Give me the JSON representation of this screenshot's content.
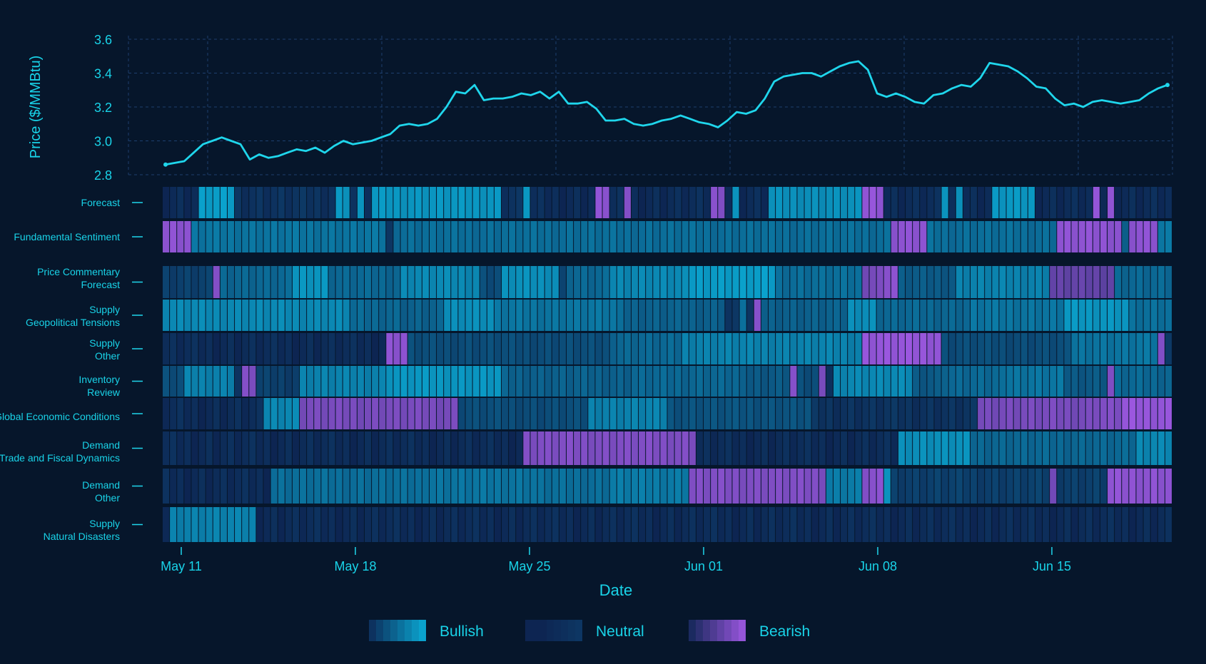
{
  "chart_data": {
    "type": "line+heatmap",
    "title": "",
    "xlabel": "Date",
    "ylabel": "Price ($/MMBtu)",
    "ylim": [
      2.8,
      3.6
    ],
    "yticks": [
      "2.8",
      "3.0",
      "3.2",
      "3.4",
      "3.6"
    ],
    "xtick_labels": [
      "May 11",
      "May 18",
      "May 25",
      "Jun 01",
      "Jun 08",
      "Jun 15"
    ],
    "x_range_days": [
      -0.75,
      41.75
    ],
    "grid": true,
    "colors": {
      "line": "#1fd6ec",
      "bullish": "#0aa9d3",
      "neutral": "#0d2552",
      "bearish": "#9b57df",
      "background": "#06162b"
    },
    "price_series": {
      "name": "",
      "points": [
        [
          0,
          2.86
        ],
        [
          0.5,
          2.87
        ],
        [
          1.0,
          2.88
        ],
        [
          1.5,
          2.93
        ],
        [
          2.0,
          2.98
        ],
        [
          2.5,
          3.0
        ],
        [
          3.0,
          3.02
        ],
        [
          3.5,
          3.0
        ],
        [
          4.0,
          2.98
        ],
        [
          4.5,
          2.89
        ],
        [
          5.0,
          2.92
        ],
        [
          5.5,
          2.9
        ],
        [
          6.0,
          2.91
        ],
        [
          6.5,
          2.93
        ],
        [
          7.0,
          2.95
        ],
        [
          7.5,
          2.94
        ],
        [
          8.0,
          2.96
        ],
        [
          8.5,
          2.93
        ],
        [
          9.0,
          2.97
        ],
        [
          9.5,
          3.0
        ],
        [
          10.0,
          2.98
        ],
        [
          10.5,
          2.99
        ],
        [
          11.0,
          3.0
        ],
        [
          11.5,
          3.02
        ],
        [
          12.0,
          3.04
        ],
        [
          12.5,
          3.09
        ],
        [
          13.0,
          3.1
        ],
        [
          13.5,
          3.09
        ],
        [
          14.0,
          3.1
        ],
        [
          14.5,
          3.13
        ],
        [
          15.0,
          3.2
        ],
        [
          15.5,
          3.29
        ],
        [
          16.0,
          3.28
        ],
        [
          16.5,
          3.33
        ],
        [
          17.0,
          3.24
        ],
        [
          17.5,
          3.25
        ],
        [
          18.0,
          3.25
        ],
        [
          18.5,
          3.26
        ],
        [
          19.0,
          3.28
        ],
        [
          19.5,
          3.27
        ],
        [
          20.0,
          3.29
        ],
        [
          20.5,
          3.25
        ],
        [
          21.0,
          3.29
        ],
        [
          21.5,
          3.22
        ],
        [
          22.0,
          3.22
        ],
        [
          22.5,
          3.23
        ],
        [
          23.0,
          3.19
        ],
        [
          23.5,
          3.12
        ],
        [
          24.0,
          3.12
        ],
        [
          24.5,
          3.13
        ],
        [
          25.0,
          3.1
        ],
        [
          25.5,
          3.09
        ],
        [
          26.0,
          3.1
        ],
        [
          26.5,
          3.12
        ],
        [
          27.0,
          3.13
        ],
        [
          27.5,
          3.15
        ],
        [
          28.0,
          3.13
        ],
        [
          28.5,
          3.11
        ],
        [
          29.0,
          3.1
        ],
        [
          29.5,
          3.08
        ],
        [
          30.0,
          3.12
        ],
        [
          30.5,
          3.17
        ],
        [
          31.0,
          3.16
        ],
        [
          31.5,
          3.18
        ],
        [
          32.0,
          3.25
        ],
        [
          32.5,
          3.35
        ],
        [
          33.0,
          3.38
        ],
        [
          33.5,
          3.39
        ],
        [
          34.0,
          3.4
        ],
        [
          34.5,
          3.4
        ],
        [
          35.0,
          3.38
        ],
        [
          35.5,
          3.41
        ],
        [
          36.0,
          3.44
        ],
        [
          36.5,
          3.46
        ],
        [
          37.0,
          3.47
        ],
        [
          37.5,
          3.42
        ],
        [
          38.0,
          3.28
        ],
        [
          38.5,
          3.26
        ],
        [
          39.0,
          3.28
        ],
        [
          39.5,
          3.26
        ],
        [
          40.0,
          3.23
        ],
        [
          40.5,
          3.22
        ],
        [
          41.0,
          3.27
        ],
        [
          41.5,
          3.28
        ],
        [
          42.0,
          3.31
        ],
        [
          42.5,
          3.33
        ],
        [
          43.0,
          3.32
        ],
        [
          43.5,
          3.37
        ],
        [
          44.0,
          3.46
        ],
        [
          44.5,
          3.45
        ],
        [
          45.0,
          3.44
        ],
        [
          45.5,
          3.41
        ],
        [
          46.0,
          3.37
        ],
        [
          46.5,
          3.32
        ],
        [
          47.0,
          3.31
        ],
        [
          47.5,
          3.25
        ],
        [
          48.0,
          3.21
        ],
        [
          48.5,
          3.22
        ],
        [
          49.0,
          3.2
        ],
        [
          49.5,
          3.23
        ],
        [
          50.0,
          3.24
        ],
        [
          50.5,
          3.23
        ],
        [
          51.0,
          3.22
        ],
        [
          51.5,
          3.23
        ],
        [
          52.0,
          3.24
        ],
        [
          52.5,
          3.28
        ],
        [
          53.0,
          3.31
        ],
        [
          53.5,
          3.33
        ]
      ]
    },
    "heatmap": {
      "value_scale": "-1 = Bearish, 0 = Neutral, 1 = Bullish",
      "cells_per_row": 140,
      "rows": [
        {
          "label": [
            "Forecast"
          ],
          "segments": [
            [
              0,
              5,
              0.05
            ],
            [
              5,
              10,
              0.9
            ],
            [
              10,
              24,
              0.1
            ],
            [
              24,
              26,
              0.85
            ],
            [
              26,
              27,
              0.1
            ],
            [
              27,
              28,
              0.8
            ],
            [
              28,
              29,
              0.1
            ],
            [
              29,
              47,
              0.85
            ],
            [
              47,
              50,
              0.1
            ],
            [
              50,
              51,
              0.9
            ],
            [
              51,
              60,
              0.05
            ],
            [
              60,
              62,
              -0.9
            ],
            [
              62,
              64,
              0.05
            ],
            [
              64,
              65,
              -0.85
            ],
            [
              65,
              76,
              0.05
            ],
            [
              76,
              78,
              -0.85
            ],
            [
              78,
              79,
              0.05
            ],
            [
              79,
              80,
              0.8
            ],
            [
              80,
              84,
              0.05
            ],
            [
              84,
              97,
              0.8
            ],
            [
              97,
              100,
              -0.95
            ],
            [
              100,
              108,
              0.05
            ],
            [
              108,
              109,
              0.85
            ],
            [
              109,
              110,
              0.05
            ],
            [
              110,
              111,
              0.85
            ],
            [
              111,
              115,
              0.05
            ],
            [
              115,
              121,
              0.85
            ],
            [
              121,
              129,
              0.05
            ],
            [
              129,
              130,
              -0.9
            ],
            [
              130,
              131,
              0.05
            ],
            [
              131,
              132,
              -0.9
            ],
            [
              132,
              140,
              0.05
            ]
          ]
        },
        {
          "label": [
            "Fundamental Sentiment"
          ],
          "segments": [
            [
              0,
              4,
              -0.9
            ],
            [
              4,
              31,
              0.6
            ],
            [
              31,
              32,
              0.1
            ],
            [
              32,
              101,
              0.55
            ],
            [
              101,
              106,
              -0.9
            ],
            [
              106,
              124,
              0.55
            ],
            [
              124,
              133,
              -0.9
            ],
            [
              133,
              134,
              0.4
            ],
            [
              134,
              138,
              -0.9
            ],
            [
              138,
              140,
              0.6
            ]
          ]
        },
        {
          "label": [
            "Price Commentary",
            "Forecast"
          ],
          "segments": [
            [
              0,
              7,
              0.2
            ],
            [
              7,
              8,
              -0.85
            ],
            [
              8,
              18,
              0.5
            ],
            [
              18,
              23,
              0.85
            ],
            [
              23,
              33,
              0.5
            ],
            [
              33,
              44,
              0.75
            ],
            [
              44,
              47,
              0.3
            ],
            [
              47,
              55,
              0.8
            ],
            [
              55,
              56,
              0.2
            ],
            [
              56,
              62,
              0.5
            ],
            [
              62,
              73,
              0.75
            ],
            [
              73,
              85,
              0.9
            ],
            [
              85,
              97,
              0.55
            ],
            [
              97,
              100,
              -0.75
            ],
            [
              100,
              102,
              -0.9
            ],
            [
              102,
              110,
              0.4
            ],
            [
              110,
              123,
              0.7
            ],
            [
              123,
              132,
              -0.6
            ],
            [
              132,
              140,
              0.5
            ]
          ]
        },
        {
          "label": [
            "Supply",
            "Geopolitical Tensions"
          ],
          "segments": [
            [
              0,
              26,
              0.75
            ],
            [
              26,
              33,
              0.5
            ],
            [
              33,
              39,
              0.45
            ],
            [
              39,
              46,
              0.8
            ],
            [
              46,
              64,
              0.6
            ],
            [
              64,
              78,
              0.45
            ],
            [
              78,
              80,
              0.1
            ],
            [
              80,
              81,
              0.6
            ],
            [
              81,
              82,
              0.1
            ],
            [
              82,
              83,
              -0.8
            ],
            [
              83,
              95,
              0.45
            ],
            [
              95,
              99,
              0.8
            ],
            [
              99,
              112,
              0.5
            ],
            [
              112,
              125,
              0.6
            ],
            [
              125,
              134,
              0.85
            ],
            [
              134,
              140,
              0.55
            ]
          ]
        },
        {
          "label": [
            "Supply",
            "Other"
          ],
          "segments": [
            [
              0,
              31,
              0.05
            ],
            [
              31,
              34,
              -0.9
            ],
            [
              34,
              62,
              0.3
            ],
            [
              62,
              72,
              0.5
            ],
            [
              72,
              97,
              0.7
            ],
            [
              97,
              108,
              -0.95
            ],
            [
              108,
              126,
              0.3
            ],
            [
              126,
              138,
              0.6
            ],
            [
              138,
              139,
              -0.8
            ],
            [
              139,
              140,
              0.2
            ]
          ]
        },
        {
          "label": [
            "Inventory",
            "Review"
          ],
          "segments": [
            [
              0,
              3,
              0.3
            ],
            [
              3,
              10,
              0.7
            ],
            [
              10,
              11,
              0.1
            ],
            [
              11,
              13,
              -0.8
            ],
            [
              13,
              19,
              0.2
            ],
            [
              19,
              31,
              0.7
            ],
            [
              31,
              47,
              0.85
            ],
            [
              47,
              65,
              0.45
            ],
            [
              65,
              80,
              0.5
            ],
            [
              80,
              87,
              0.4
            ],
            [
              87,
              88,
              -0.85
            ],
            [
              88,
              91,
              0.3
            ],
            [
              91,
              92,
              -0.7
            ],
            [
              92,
              93,
              0.1
            ],
            [
              93,
              104,
              0.75
            ],
            [
              104,
              108,
              0.4
            ],
            [
              108,
              116,
              0.5
            ],
            [
              116,
              125,
              0.6
            ],
            [
              125,
              131,
              0.4
            ],
            [
              131,
              132,
              -0.8
            ],
            [
              132,
              140,
              0.5
            ]
          ]
        },
        {
          "label": [
            "Global Economic Conditions"
          ],
          "segments": [
            [
              0,
              14,
              0.05
            ],
            [
              14,
              19,
              0.75
            ],
            [
              19,
              41,
              -0.75
            ],
            [
              41,
              59,
              0.3
            ],
            [
              59,
              70,
              0.7
            ],
            [
              70,
              90,
              0.35
            ],
            [
              90,
              113,
              0.1
            ],
            [
              113,
              129,
              -0.75
            ],
            [
              129,
              133,
              -0.8
            ],
            [
              133,
              140,
              -0.95
            ]
          ]
        },
        {
          "label": [
            "Demand",
            "Trade and Fiscal Dynamics"
          ],
          "segments": [
            [
              0,
              50,
              0.05
            ],
            [
              50,
              74,
              -0.8
            ],
            [
              74,
              102,
              0.05
            ],
            [
              102,
              112,
              0.8
            ],
            [
              112,
              135,
              0.5
            ],
            [
              135,
              140,
              0.75
            ]
          ]
        },
        {
          "label": [
            "Demand",
            "Other"
          ],
          "segments": [
            [
              0,
              15,
              0.05
            ],
            [
              15,
              36,
              0.55
            ],
            [
              36,
              52,
              0.6
            ],
            [
              52,
              62,
              0.55
            ],
            [
              62,
              73,
              0.65
            ],
            [
              73,
              92,
              -0.8
            ],
            [
              92,
              97,
              0.65
            ],
            [
              97,
              100,
              -0.85
            ],
            [
              100,
              101,
              0.85
            ],
            [
              101,
              123,
              0.2
            ],
            [
              123,
              124,
              -0.7
            ],
            [
              124,
              131,
              0.2
            ],
            [
              131,
              140,
              -0.9
            ]
          ]
        },
        {
          "label": [
            "Supply",
            "Natural Disasters"
          ],
          "segments": [
            [
              0,
              1,
              0.05
            ],
            [
              1,
              13,
              0.7
            ],
            [
              13,
              140,
              0.05
            ]
          ]
        }
      ]
    },
    "legend": [
      {
        "label": "Bullish",
        "key": "bullish"
      },
      {
        "label": "Neutral",
        "key": "neutral"
      },
      {
        "label": "Bearish",
        "key": "bearish"
      }
    ]
  }
}
